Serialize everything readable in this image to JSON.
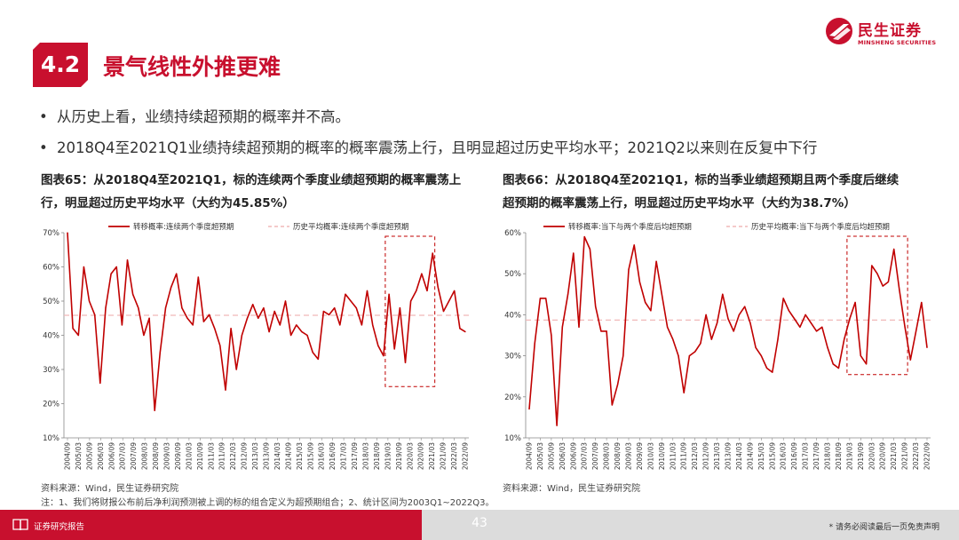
{
  "brand": {
    "name_cn": "民生证券",
    "name_en": "MINSHENG SECURITIES",
    "color": "#c8102e"
  },
  "section": {
    "number": "4.2",
    "title": "景气线性外推更难"
  },
  "bullets": [
    "从历史上看，业绩持续超预期的概率并不高。",
    "2018Q4至2021Q1业绩持续超预期的概率的概率震荡上行，且明显超过历史平均水平；2021Q2以来则在反复中下行"
  ],
  "chart1": {
    "caption_line1": "图表65：从2018Q4至2021Q1，标的连续两个季度业绩超预期的概率震荡上",
    "caption_line2": "行，明显超过历史平均水平（大约为45.85%）",
    "source": "资料来源：Wind，民生证券研究院"
  },
  "chart2": {
    "caption_line1": "图表66：从2018Q4至2021Q1，标的当季业绩超预期且两个季度后继续",
    "caption_line2": "超预期的概率震荡上行，明显超过历史平均水平（大约为38.7%）",
    "source": "资料来源：Wind，民生证券研究院"
  },
  "note": "注：1、我们将财报公布前后净利润预测被上调的标的组合定义为超预期组合；2、统计区间为2003Q1~2022Q3。",
  "footer": {
    "label": "证券研究报告",
    "page": "43",
    "disclaimer": "* 请务必阅读最后一页免责声明"
  },
  "chart_data": [
    {
      "type": "line",
      "legend": [
        "转移概率:连续两个季度超预期",
        "历史平均概率:连续两个季度超预期"
      ],
      "legend_placement": "top",
      "ylim": [
        10,
        70
      ],
      "y_ticks": [
        "10%",
        "20%",
        "30%",
        "40%",
        "50%",
        "60%",
        "70%"
      ],
      "x_tick_labels": [
        "2004/09",
        "2005/03",
        "2005/09",
        "2006/03",
        "2006/09",
        "2007/03",
        "2007/09",
        "2008/03",
        "2008/09",
        "2009/03",
        "2009/09",
        "2010/03",
        "2010/09",
        "2011/03",
        "2011/09",
        "2012/03",
        "2012/09",
        "2013/03",
        "2013/09",
        "2014/03",
        "2014/09",
        "2015/03",
        "2015/09",
        "2016/03",
        "2016/09",
        "2017/03",
        "2017/09",
        "2018/03",
        "2018/09",
        "2019/03",
        "2019/09",
        "2020/03",
        "2020/09",
        "2021/03",
        "2021/09",
        "2022/03",
        "2022/09"
      ],
      "series": [
        {
          "name": "转移概率:连续两个季度超预期",
          "color": "#c00000",
          "values": [
            70,
            42,
            40,
            60,
            50,
            46,
            26,
            48,
            58,
            60,
            43,
            62,
            52,
            48,
            40,
            45,
            18,
            35,
            48,
            54,
            58,
            48,
            45,
            43,
            57,
            44,
            46,
            42,
            37,
            24,
            42,
            30,
            40,
            45,
            49,
            45,
            48,
            41,
            47,
            43,
            50,
            40,
            43,
            41,
            40,
            35,
            33,
            47,
            46,
            48,
            43,
            52,
            50,
            48,
            43,
            53,
            43,
            37,
            34,
            52,
            36,
            48,
            32,
            50,
            53,
            58,
            53,
            64,
            54,
            47,
            50,
            53,
            42,
            41
          ]
        },
        {
          "name": "历史平均概率:连续两个季度超预期",
          "color": "#f0b8b8",
          "dashed": true,
          "value": 45.85
        }
      ],
      "highlight_box": {
        "x_from": "2019/03",
        "x_to": "2021/03"
      }
    },
    {
      "type": "line",
      "legend": [
        "转移概率:当下与两个季度后均超预期",
        "历史平均概率:当下与两个季度后均超预期"
      ],
      "legend_placement": "top",
      "ylim": [
        10,
        60
      ],
      "y_ticks": [
        "10%",
        "20%",
        "30%",
        "40%",
        "50%",
        "60%"
      ],
      "x_tick_labels": [
        "2004/09",
        "2005/03",
        "2005/09",
        "2006/03",
        "2006/09",
        "2007/03",
        "2007/09",
        "2008/03",
        "2008/09",
        "2009/03",
        "2009/09",
        "2010/03",
        "2010/09",
        "2011/03",
        "2011/09",
        "2012/03",
        "2012/09",
        "2013/03",
        "2013/09",
        "2014/03",
        "2014/09",
        "2015/03",
        "2015/09",
        "2016/03",
        "2016/09",
        "2017/03",
        "2017/09",
        "2018/03",
        "2018/09",
        "2019/03",
        "2019/09",
        "2020/03",
        "2020/09",
        "2021/03",
        "2021/09",
        "2022/03",
        "2022/09"
      ],
      "series": [
        {
          "name": "转移概率:当下与两个季度后均超预期",
          "color": "#c00000",
          "values": [
            17,
            33,
            44,
            44,
            35,
            13,
            37,
            45,
            55,
            37,
            59,
            56,
            42,
            36,
            36,
            18,
            23,
            30,
            51,
            57,
            48,
            43,
            41,
            53,
            45,
            37,
            34,
            30,
            21,
            30,
            31,
            33,
            40,
            34,
            38,
            45,
            39,
            36,
            40,
            42,
            38,
            32,
            30,
            27,
            26,
            34,
            44,
            41,
            39,
            37,
            40,
            38,
            36,
            37,
            32,
            28,
            27,
            34,
            39,
            43,
            30,
            28,
            52,
            50,
            47,
            48,
            56,
            46,
            37,
            29,
            36,
            43,
            32
          ]
        },
        {
          "name": "历史平均概率:当下与两个季度后均超预期",
          "color": "#f0b8b8",
          "dashed": true,
          "value": 38.7
        }
      ],
      "highlight_box": {
        "x_from": "2019/03",
        "x_to": "2021/09"
      }
    }
  ]
}
